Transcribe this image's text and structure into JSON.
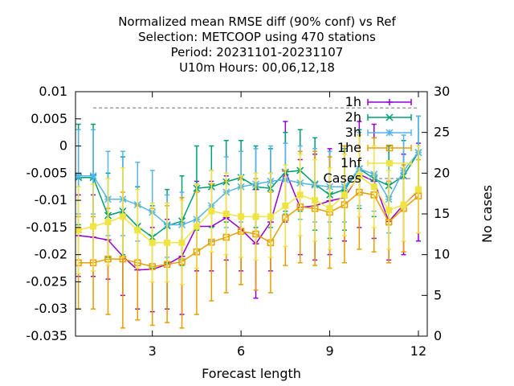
{
  "chart_data": {
    "type": "line",
    "title_lines": [
      "Normalized mean RMSE diff (90% conf) vs Ref",
      "Selection: METCOOP using   470 stations",
      "Period: 20231101-20231107",
      "U10m   Hours:  00,06,12,18"
    ],
    "xlabel": "Forecast length",
    "ylabel": "",
    "y2label": "No cases",
    "xlim": [
      0.4,
      12.3
    ],
    "ylim": [
      -0.035,
      0.01
    ],
    "y2lim": [
      0,
      30
    ],
    "xticks": [
      "3",
      "6",
      "9",
      "12"
    ],
    "yticks": [
      "0.01",
      "0.005",
      "0",
      "-0.005",
      "-0.01",
      "-0.015",
      "-0.02",
      "-0.025",
      "-0.03",
      "-0.035"
    ],
    "y2ticks": [
      "0",
      "5",
      "10",
      "15",
      "20",
      "25",
      "30"
    ],
    "x": [
      0.5,
      1,
      1.5,
      2,
      2.5,
      3,
      3.5,
      4,
      4.5,
      5,
      5.5,
      6,
      6.5,
      7,
      7.5,
      8,
      8.5,
      9,
      9.5,
      10,
      10.5,
      11,
      11.5,
      12
    ],
    "series": [
      {
        "name": "1h",
        "color": "#9400d3",
        "marker": "plus",
        "values": [
          -0.0165,
          -0.0168,
          -0.0173,
          -0.0203,
          -0.0228,
          -0.0227,
          -0.0218,
          -0.0203,
          -0.0148,
          -0.0148,
          -0.0132,
          -0.0153,
          -0.018,
          -0.014,
          -0.0046,
          -0.0113,
          -0.011,
          -0.0101,
          -0.0095,
          -0.0052,
          -0.0065,
          -0.0139,
          -0.0108,
          -0.0082
        ],
        "err_low": [
          -0.024,
          -0.024,
          -0.0245,
          -0.0275,
          -0.03,
          -0.0305,
          -0.03,
          -0.031,
          -0.023,
          -0.023,
          -0.021,
          -0.023,
          -0.028,
          -0.023,
          -0.014,
          -0.02,
          -0.021,
          -0.02,
          -0.0175,
          -0.015,
          -0.017,
          -0.021,
          -0.02,
          -0.0175
        ],
        "err_high": [
          -0.009,
          -0.009,
          -0.0095,
          -0.0125,
          -0.0155,
          -0.015,
          -0.0135,
          -0.0095,
          -0.0065,
          -0.0065,
          -0.0055,
          -0.0075,
          -0.008,
          -0.005,
          0.0045,
          -0.0025,
          -0.0015,
          -0.0005,
          -0.0015,
          0.0045,
          0.004,
          -0.0065,
          -0.0015,
          0.0005
        ]
      },
      {
        "name": "2h",
        "color": "#009e73",
        "marker": "x",
        "values": [
          -0.0058,
          -0.0058,
          -0.0128,
          -0.012,
          -0.0148,
          -0.0168,
          -0.0147,
          -0.0138,
          -0.0078,
          -0.0075,
          -0.0066,
          -0.0058,
          -0.0075,
          -0.0078,
          -0.0048,
          -0.0045,
          -0.007,
          -0.009,
          -0.008,
          -0.0042,
          -0.006,
          -0.0073,
          -0.0055,
          -0.0012
        ],
        "err_low": [
          -0.0145,
          -0.0145,
          -0.0205,
          -0.02,
          -0.022,
          -0.0225,
          -0.0215,
          -0.022,
          -0.0155,
          -0.015,
          -0.014,
          -0.013,
          -0.015,
          -0.015,
          -0.012,
          -0.012,
          -0.0155,
          -0.017,
          -0.0155,
          -0.0115,
          -0.013,
          -0.0145,
          -0.012,
          -0.008
        ],
        "err_high": [
          0.004,
          0.004,
          -0.005,
          -0.002,
          -0.0075,
          -0.011,
          -0.008,
          -0.0055,
          0.0,
          0.0,
          0.001,
          0.001,
          0.0,
          -0.0005,
          0.0025,
          0.003,
          0.0015,
          -0.001,
          -0.0005,
          0.003,
          0.0015,
          0.0,
          0.001,
          0.0055
        ]
      },
      {
        "name": "3h",
        "color": "#56b4e9",
        "marker": "star",
        "values": [
          -0.0055,
          -0.0055,
          -0.0098,
          -0.0098,
          -0.0108,
          -0.0122,
          -0.0145,
          -0.0145,
          -0.0135,
          -0.011,
          -0.0085,
          -0.0075,
          -0.007,
          -0.0065,
          -0.0062,
          -0.0068,
          -0.0072,
          -0.0075,
          -0.0075,
          -0.0042,
          -0.0052,
          -0.0098,
          -0.0045,
          -0.0012
        ],
        "err_low": [
          -0.0125,
          -0.0125,
          -0.0165,
          -0.0165,
          -0.0175,
          -0.018,
          -0.0205,
          -0.021,
          -0.02,
          -0.0175,
          -0.015,
          -0.014,
          -0.0135,
          -0.013,
          -0.0125,
          -0.0135,
          -0.014,
          -0.014,
          -0.014,
          -0.011,
          -0.012,
          -0.016,
          -0.011,
          -0.0075
        ],
        "err_high": [
          0.003,
          0.003,
          -0.001,
          -0.001,
          -0.003,
          -0.0045,
          -0.009,
          -0.0085,
          -0.007,
          -0.0045,
          -0.002,
          -0.001,
          -0.0005,
          0.0,
          0.0005,
          0.0,
          -0.0005,
          -0.001,
          -0.001,
          0.0025,
          0.0015,
          -0.0035,
          0.002,
          0.0055
        ]
      },
      {
        "name": "1he",
        "color": "#e69f00",
        "marker": "square",
        "values": [
          -0.0215,
          -0.0215,
          -0.0208,
          -0.0208,
          -0.0215,
          -0.0222,
          -0.0218,
          -0.0213,
          -0.0195,
          -0.0177,
          -0.0168,
          -0.0157,
          -0.0162,
          -0.0178,
          -0.0132,
          -0.0112,
          -0.0115,
          -0.0122,
          -0.0108,
          -0.0085,
          -0.009,
          -0.014,
          -0.0115,
          -0.0092
        ],
        "err_low": [
          -0.03,
          -0.03,
          -0.031,
          -0.0335,
          -0.032,
          -0.033,
          -0.0325,
          -0.0335,
          -0.031,
          -0.0285,
          -0.027,
          -0.0255,
          -0.0265,
          -0.027,
          -0.022,
          -0.0215,
          -0.022,
          -0.0225,
          -0.0215,
          -0.019,
          -0.0195,
          -0.0215,
          -0.0195,
          -0.016
        ],
        "err_high": [
          -0.013,
          -0.013,
          -0.0115,
          -0.0085,
          -0.011,
          -0.0115,
          -0.011,
          -0.0095,
          -0.0085,
          -0.007,
          -0.0065,
          -0.006,
          -0.006,
          -0.0085,
          -0.0045,
          -0.001,
          -0.001,
          -0.002,
          0.0,
          0.002,
          0.0015,
          -0.0065,
          -0.0035,
          -0.0025
        ]
      },
      {
        "name": "1hf",
        "color": "#f0e442",
        "marker": "filled-square",
        "values": [
          -0.0155,
          -0.0148,
          -0.014,
          -0.013,
          -0.0155,
          -0.0178,
          -0.0178,
          -0.0178,
          -0.0148,
          -0.012,
          -0.0125,
          -0.013,
          -0.013,
          -0.013,
          -0.011,
          -0.009,
          -0.01,
          -0.0115,
          -0.009,
          -0.0055,
          -0.0075,
          -0.0118,
          -0.0108,
          -0.008
        ],
        "err_low": [
          -0.0235,
          -0.023,
          -0.022,
          -0.0205,
          -0.0225,
          -0.025,
          -0.025,
          -0.0255,
          -0.0225,
          -0.0195,
          -0.02,
          -0.0205,
          -0.021,
          -0.0205,
          -0.0185,
          -0.0165,
          -0.0175,
          -0.019,
          -0.0165,
          -0.013,
          -0.015,
          -0.019,
          -0.0175,
          -0.016
        ],
        "err_high": [
          -0.0075,
          -0.007,
          -0.006,
          -0.004,
          -0.008,
          -0.0105,
          -0.0105,
          -0.01,
          -0.007,
          -0.0045,
          -0.005,
          -0.0055,
          -0.005,
          -0.005,
          -0.0035,
          -0.0015,
          -0.0025,
          -0.004,
          -0.0015,
          0.002,
          0.0,
          -0.0045,
          -0.004,
          0.0
        ]
      }
    ],
    "cases": {
      "name": "Cases",
      "color": "#a0a0a0",
      "value": 28,
      "x_range": [
        1,
        12
      ]
    }
  }
}
